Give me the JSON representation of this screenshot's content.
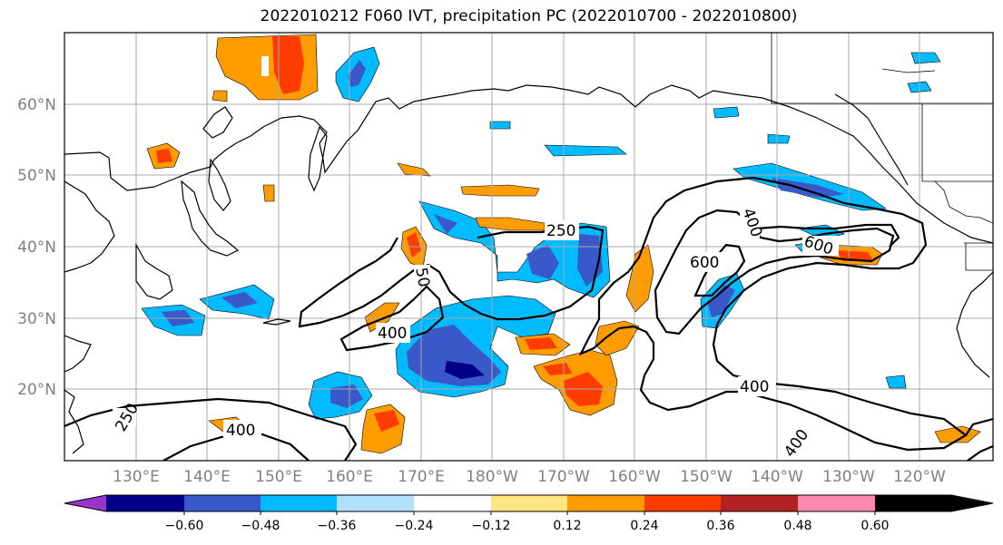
{
  "title": "2022010212 F060 IVT, precipitation PC (2022010700 - 2022010800)",
  "map": {
    "lon_labels": [
      "130°E",
      "140°E",
      "150°E",
      "160°E",
      "170°E",
      "180°W",
      "170°W",
      "160°W",
      "150°W",
      "140°W",
      "130°W",
      "120°W"
    ],
    "lat_labels": [
      "60°N",
      "50°N",
      "40°N",
      "30°N",
      "20°N"
    ],
    "contour_labels": [
      "250",
      "400",
      "400",
      "600",
      "600",
      "400",
      "400",
      "50",
      "400",
      "250"
    ]
  },
  "colorbar": {
    "tick_labels": [
      "−0.60",
      "−0.48",
      "−0.36",
      "−0.24",
      "−0.12",
      "0.12",
      "0.24",
      "0.36",
      "0.48",
      "0.60"
    ],
    "colors": [
      "#9933cc",
      "#000088",
      "#3a58c8",
      "#00bbff",
      "#b0e0ff",
      "#ffffff",
      "#ffe680",
      "#ff9c00",
      "#ff3c00",
      "#b22222",
      "#ff88b0"
    ]
  }
}
